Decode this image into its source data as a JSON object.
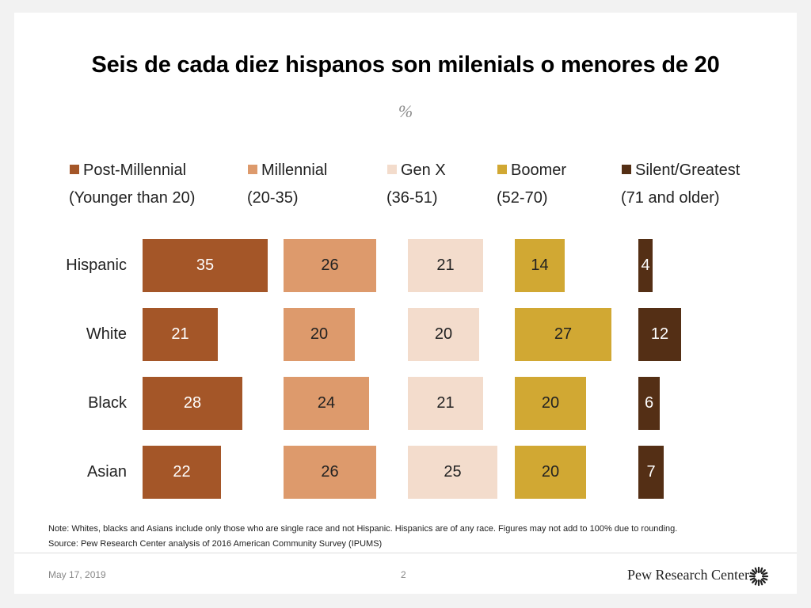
{
  "slide": {
    "title": "Seis de cada diez hispanos son milenials o menores de 20",
    "subtitle": "%",
    "note": "Note: Whites, blacks and Asians include only those who are single race and not Hispanic. Hispanics are of any race. Figures may not add to 100% due to rounding.",
    "source": "Source: Pew Research Center analysis of 2016 American Community Survey (IPUMS)",
    "date": "May 17, 2019",
    "page_number": "2",
    "brand": "Pew Research Center"
  },
  "chart_data": {
    "type": "bar",
    "title": "Seis de cada diez hispanos son milenials o menores de 20",
    "subtitle": "%",
    "categories": [
      "Hispanic",
      "White",
      "Black",
      "Asian"
    ],
    "series": [
      {
        "name": "Post-Millennial",
        "range": "(Younger than 20)",
        "color": "#a45628",
        "label_color": "#ffffff",
        "values": [
          35,
          21,
          28,
          22
        ]
      },
      {
        "name": "Millennial",
        "range": "(20-35)",
        "color": "#dd9a6c",
        "label_color": "#222222",
        "values": [
          26,
          20,
          24,
          26
        ]
      },
      {
        "name": "Gen X",
        "range": "(36-51)",
        "color": "#f3dccc",
        "label_color": "#222222",
        "values": [
          21,
          20,
          21,
          25
        ]
      },
      {
        "name": "Boomer",
        "range": "(52-70)",
        "color": "#d1a833",
        "label_color": "#222222",
        "values": [
          14,
          27,
          20,
          20
        ]
      },
      {
        "name": "Silent/Greatest",
        "range": "(71 and older)",
        "color": "#542f15",
        "label_color": "#ffffff",
        "values": [
          4,
          12,
          6,
          7
        ]
      }
    ],
    "legend": "top",
    "grid": false
  }
}
